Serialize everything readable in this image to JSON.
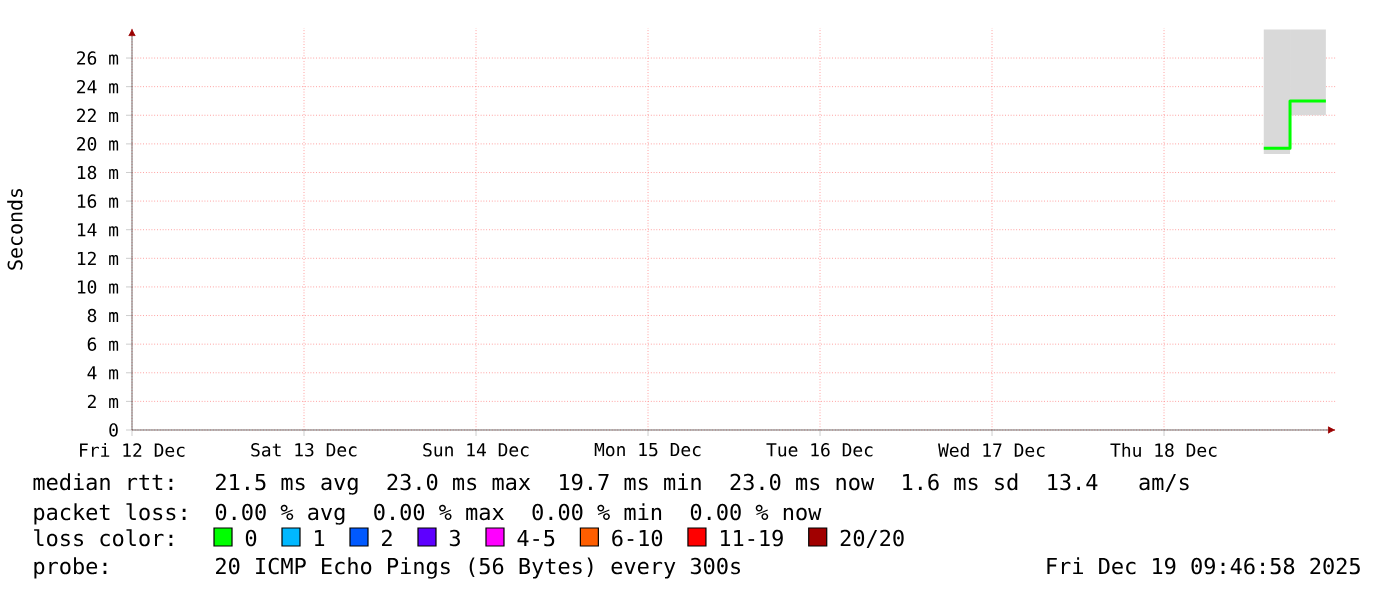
{
  "chart_data": {
    "type": "step",
    "ylabel": "Seconds",
    "x": [
      "2025-12-18T23:40",
      "2025-12-19T03:20",
      "2025-12-19T08:20"
    ],
    "xlim": [
      "2025-12-12T09:45",
      "2025-12-19T09:45"
    ],
    "xticks": [
      {
        "value": "2025-12-12T09:45",
        "label": "Fri 12 Dec"
      },
      {
        "value": "2025-12-13T09:45",
        "label": "Sat 13 Dec"
      },
      {
        "value": "2025-12-14T09:45",
        "label": "Sun 14 Dec"
      },
      {
        "value": "2025-12-15T09:45",
        "label": "Mon 15 Dec"
      },
      {
        "value": "2025-12-16T09:45",
        "label": "Tue 16 Dec"
      },
      {
        "value": "2025-12-17T09:45",
        "label": "Wed 17 Dec"
      },
      {
        "value": "2025-12-18T09:45",
        "label": "Thu 18 Dec"
      }
    ],
    "ylim": [
      0,
      28.1
    ],
    "yticks": [
      0,
      {
        "value": 2,
        "label": "2 m"
      },
      {
        "value": 4,
        "label": "4 m"
      },
      {
        "value": 6,
        "label": "6 m"
      },
      {
        "value": 8,
        "label": "8 m"
      },
      {
        "value": 10,
        "label": "10 m"
      },
      {
        "value": 12,
        "label": "12 m"
      },
      {
        "value": 14,
        "label": "14 m"
      },
      {
        "value": 16,
        "label": "16 m"
      },
      {
        "value": 18,
        "label": "18 m"
      },
      {
        "value": 20,
        "label": "20 m"
      },
      {
        "value": 22,
        "label": "22 m"
      },
      {
        "value": 24,
        "label": "24 m"
      },
      {
        "value": 26,
        "label": "26 m"
      }
    ],
    "grid": true,
    "legend": "bottom",
    "legend_title": "loss color:",
    "series": [
      {
        "name": "0",
        "color": "#00ff00",
        "values": [
          19.7,
          23.0,
          23.0
        ],
        "lower": [
          19.3,
          22.0,
          22.0
        ],
        "upper": [
          28.0,
          28.0,
          28.0
        ]
      },
      {
        "name": "1",
        "color": "#00b8ff",
        "values": [
          null,
          null,
          null
        ]
      },
      {
        "name": "2",
        "color": "#0059ff",
        "values": [
          null,
          null,
          null
        ]
      },
      {
        "name": "3",
        "color": "#5e00ff",
        "values": [
          null,
          null,
          null
        ]
      },
      {
        "name": "4-5",
        "color": "#ff00ff",
        "values": [
          null,
          null,
          null
        ]
      },
      {
        "name": "6-10",
        "color": "#ff5e00",
        "values": [
          null,
          null,
          null
        ]
      },
      {
        "name": "11-19",
        "color": "#ff0000",
        "values": [
          null,
          null,
          null
        ]
      },
      {
        "name": "20/20",
        "color": "#a10000",
        "values": [
          null,
          null,
          null
        ]
      }
    ],
    "annotations": [
      "median rtt:",
      "21.5 ms avg  23.0 ms max  19.7 ms min  23.0 ms now  1.6 ms sd  13.4   am/s",
      "packet loss:",
      "0.00 % avg  0.00 % max  0.00 % min  0.00 % now",
      "probe:",
      "20 ICMP Echo Pings (56 Bytes) every 300s",
      "Fri Dec 19 09:46:58 2025"
    ]
  }
}
